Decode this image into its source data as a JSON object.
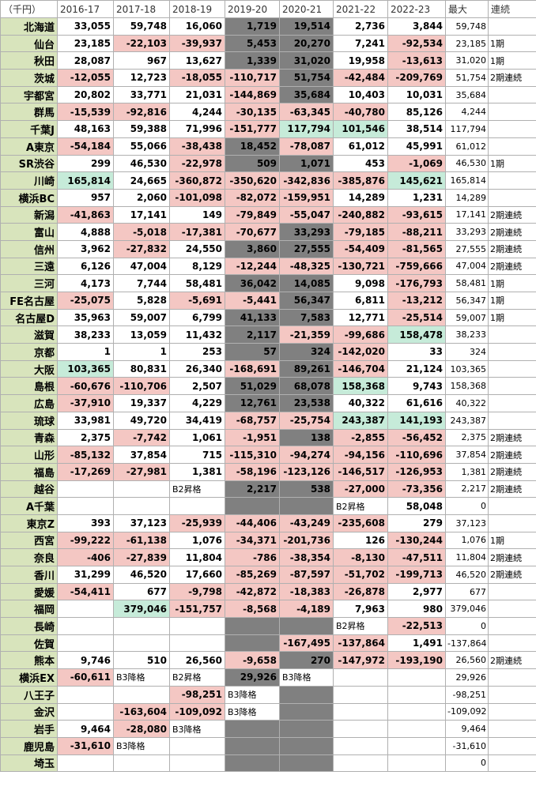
{
  "table": {
    "header": [
      "（千円）",
      "2016-17",
      "2017-18",
      "2018-19",
      "2019-20",
      "2020-21",
      "2021-22",
      "2022-23",
      "最大",
      "連続"
    ],
    "rows": [
      [
        "北海道",
        "33,055",
        "59,748",
        "16,060",
        "1,719",
        "19,514",
        "2,736",
        "3,844",
        "59,748",
        null
      ],
      [
        "仙台",
        "23,185",
        "-22,103",
        "-39,937",
        "5,453",
        "20,270",
        "7,241",
        "-92,534",
        "23,185",
        "1期"
      ],
      [
        "秋田",
        "28,087",
        "967",
        "13,627",
        "1,339",
        "31,020",
        "19,958",
        "-13,613",
        "31,020",
        "1期"
      ],
      [
        "茨城",
        "-12,055",
        "12,723",
        "-18,055",
        "-110,717",
        "51,754",
        "-42,484",
        "-209,769",
        "51,754",
        "2期連続"
      ],
      [
        "宇都宮",
        "20,802",
        "33,771",
        "21,031",
        "-144,869",
        "35,684",
        "10,403",
        "10,031",
        "35,684",
        null
      ],
      [
        "群馬",
        "-15,539",
        "-92,816",
        "4,244",
        "-30,135",
        "-63,345",
        "-40,780",
        "85,126",
        "4,244",
        null
      ],
      [
        "千葉J",
        "48,163",
        "59,388",
        "71,996",
        "-151,777",
        "117,794",
        "101,546",
        "38,514",
        "117,794",
        null
      ],
      [
        "A東京",
        "-54,184",
        "55,066",
        "-38,438",
        "18,452",
        "-78,087",
        "61,012",
        "45,991",
        "61,012",
        null
      ],
      [
        "SR渋谷",
        "299",
        "46,530",
        "-22,978",
        "509",
        "1,071",
        "453",
        "-1,069",
        "46,530",
        "1期"
      ],
      [
        "川崎",
        "165,814",
        "24,665",
        "-360,872",
        "-350,620",
        "-342,836",
        "-385,876",
        "145,621",
        "165,814",
        null
      ],
      [
        "横浜BC",
        "957",
        "2,060",
        "-101,098",
        "-82,072",
        "-159,951",
        "14,289",
        "1,231",
        "14,289",
        null
      ],
      [
        "新潟",
        "-41,863",
        "17,141",
        "149",
        "-79,849",
        "-55,047",
        "-240,882",
        "-93,615",
        "17,141",
        "2期連続"
      ],
      [
        "富山",
        "4,888",
        "-5,018",
        "-17,381",
        "-70,677",
        "33,293",
        "-79,185",
        "-88,211",
        "33,293",
        "2期連続"
      ],
      [
        "信州",
        "3,962",
        "-27,832",
        "24,550",
        "3,860",
        "27,555",
        "-54,409",
        "-81,565",
        "27,555",
        "2期連続"
      ],
      [
        "三遠",
        "6,126",
        "47,004",
        "8,129",
        "-12,244",
        "-48,325",
        "-130,721",
        "-759,666",
        "47,004",
        "2期連続"
      ],
      [
        "三河",
        "4,173",
        "7,744",
        "58,481",
        "36,042",
        "14,085",
        "9,098",
        "-176,793",
        "58,481",
        "1期"
      ],
      [
        "FE名古屋",
        "-25,075",
        "5,828",
        "-5,691",
        "-5,441",
        "56,347",
        "6,811",
        "-13,212",
        "56,347",
        "1期"
      ],
      [
        "名古屋D",
        "35,963",
        "59,007",
        "6,799",
        "41,133",
        "7,583",
        "12,771",
        "-25,514",
        "59,007",
        "1期"
      ],
      [
        "滋賀",
        "38,233",
        "13,059",
        "11,432",
        "2,117",
        "-21,359",
        "-99,686",
        "158,478",
        "38,233",
        null
      ],
      [
        "京都",
        "1",
        "1",
        "253",
        "57",
        "324",
        "-142,020",
        "33",
        "324",
        null
      ],
      [
        "大阪",
        "103,365",
        "80,831",
        "26,340",
        "-168,691",
        "89,261",
        "-146,704",
        "21,124",
        "103,365",
        null
      ],
      [
        "島根",
        "-60,676",
        "-110,706",
        "2,507",
        "51,029",
        "68,078",
        "158,368",
        "9,743",
        "158,368",
        null
      ],
      [
        "広島",
        "-37,910",
        "19,337",
        "4,229",
        "12,761",
        "23,538",
        "40,322",
        "61,616",
        "40,322",
        null
      ],
      [
        "琉球",
        "33,981",
        "49,720",
        "34,419",
        "-68,757",
        "-25,754",
        "243,387",
        "141,193",
        "243,387",
        null
      ],
      [
        "青森",
        "2,375",
        "-7,742",
        "1,061",
        "-1,951",
        "138",
        "-2,855",
        "-56,452",
        "2,375",
        "2期連続"
      ],
      [
        "山形",
        "-85,132",
        "37,854",
        "715",
        "-115,310",
        "-94,274",
        "-94,156",
        "-110,696",
        "37,854",
        "2期連続"
      ],
      [
        "福島",
        "-17,269",
        "-27,981",
        "1,381",
        "-58,196",
        "-123,126",
        "-146,517",
        "-126,953",
        "1,381",
        "2期連続"
      ],
      [
        "越谷",
        null,
        null,
        "B2昇格",
        "2,217",
        "538",
        "-27,000",
        "-73,356",
        "2,217",
        "2期連続"
      ],
      [
        "A千葉",
        null,
        null,
        null,
        null,
        null,
        "B2昇格",
        "58,048",
        "0",
        null
      ],
      [
        "東京Z",
        "393",
        "37,123",
        "-25,939",
        "-44,406",
        "-43,249",
        "-235,608",
        "279",
        "37,123",
        null
      ],
      [
        "西宮",
        "-99,222",
        "-61,138",
        "1,076",
        "-34,371",
        "-201,736",
        "126",
        "-130,244",
        "1,076",
        "1期"
      ],
      [
        "奈良",
        "-406",
        "-27,839",
        "11,804",
        "-786",
        "-38,354",
        "-8,130",
        "-47,511",
        "11,804",
        "2期連続"
      ],
      [
        "香川",
        "31,299",
        "46,520",
        "17,660",
        "-85,269",
        "-87,597",
        "-51,702",
        "-199,713",
        "46,520",
        "2期連続"
      ],
      [
        "愛媛",
        "-54,411",
        "677",
        "-9,798",
        "-42,872",
        "-18,383",
        "-26,878",
        "2,977",
        "677",
        null
      ],
      [
        "福岡",
        null,
        "379,046",
        "-151,757",
        "-8,568",
        "-4,189",
        "7,963",
        "980",
        "379,046",
        null
      ],
      [
        "長崎",
        null,
        null,
        null,
        null,
        null,
        "B2昇格",
        "-22,513",
        "0",
        null
      ],
      [
        "佐賀",
        null,
        null,
        null,
        null,
        "-167,495",
        "-137,864",
        "1,491",
        "-137,864",
        null
      ],
      [
        "熊本",
        "9,746",
        "510",
        "26,560",
        "-9,658",
        "270",
        "-147,972",
        "-193,190",
        "26,560",
        "2期連続"
      ],
      [
        "横浜EX",
        "-60,611",
        "B3降格",
        "B2昇格",
        "29,926",
        "B3降格",
        null,
        null,
        "29,926",
        null
      ],
      [
        "八王子",
        null,
        null,
        "-98,251",
        "B3降格",
        null,
        null,
        null,
        "-98,251",
        null
      ],
      [
        "金沢",
        null,
        "-163,604",
        "-109,092",
        "B3降格",
        null,
        null,
        null,
        "-109,092",
        null
      ],
      [
        "岩手",
        "9,464",
        "-28,080",
        "B3降格",
        null,
        null,
        null,
        null,
        "9,464",
        null
      ],
      [
        "鹿児島",
        "-31,610",
        "B3降格",
        null,
        null,
        null,
        null,
        null,
        "-31,610",
        null
      ],
      [
        "埼玉",
        null,
        null,
        null,
        null,
        null,
        null,
        null,
        "0",
        null
      ]
    ],
    "colors": {
      "name": "#d8e4bc",
      "negative": "#f4c7c3",
      "top": "#c6ebd9",
      "paused": "#808080"
    },
    "top_cells": [
      [
        6,
        5
      ],
      [
        6,
        6
      ],
      [
        9,
        1
      ],
      [
        9,
        7
      ],
      [
        18,
        7
      ],
      [
        20,
        1
      ],
      [
        21,
        6
      ],
      [
        23,
        6
      ],
      [
        23,
        7
      ],
      [
        34,
        2
      ]
    ],
    "paused_columns": [
      4,
      5
    ]
  }
}
